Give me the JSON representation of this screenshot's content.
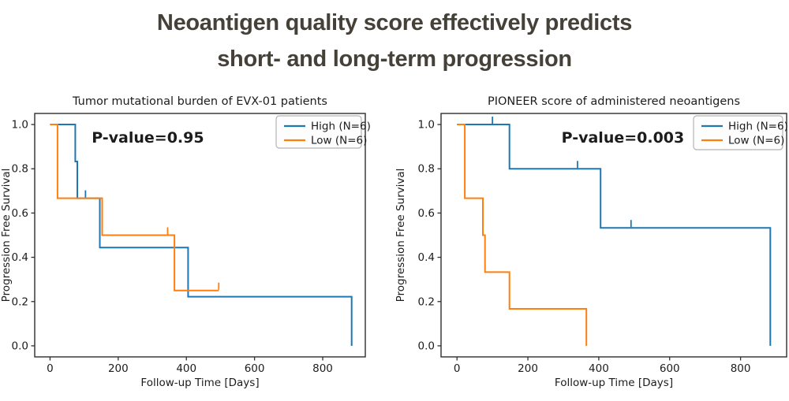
{
  "main_title": {
    "line1": "Neoantigen quality score effectively predicts",
    "line2": "short- and long-term progression"
  },
  "colors": {
    "high": "#1f77b4",
    "low": "#ff7f0e",
    "title_text": "#454139",
    "axis_text": "#1c1c1c",
    "spine": "#2e2e2e",
    "legend_border": "#b4b4b4",
    "legend_fill": "#fdfdfd"
  },
  "chart_data": [
    {
      "type": "line",
      "subtype": "kaplan-meier-step",
      "title": "Tumor mutational burden of EVX-01 patients",
      "xlabel": "Follow-up Time [Days]",
      "ylabel": "Progression Free Survival",
      "annotation": {
        "text": "P-value=0.95",
        "x": 287,
        "y": 0.94
      },
      "xlim": [
        -45,
        925
      ],
      "ylim": [
        -0.05,
        1.05
      ],
      "x_ticks": [
        0,
        200,
        400,
        600,
        800
      ],
      "y_ticks": [
        0.0,
        0.2,
        0.4,
        0.6,
        0.8,
        1.0
      ],
      "grid": false,
      "legend": {
        "position": "upper right",
        "entries": [
          {
            "label": "High (N=6)",
            "series": "high"
          },
          {
            "label": "Low (N=6)",
            "series": "low"
          }
        ]
      },
      "series": [
        {
          "name": "High (N=6)",
          "color": "high",
          "steps": [
            [
              0,
              1.0
            ],
            [
              74,
              1.0
            ],
            [
              74,
              0.833
            ],
            [
              80,
              0.833
            ],
            [
              80,
              0.667
            ],
            [
              146,
              0.667
            ],
            [
              146,
              0.444
            ],
            [
              405,
              0.444
            ],
            [
              405,
              0.222
            ],
            [
              885,
              0.222
            ],
            [
              885,
              0.0
            ]
          ],
          "censors": [
            [
              104,
              0.667
            ]
          ]
        },
        {
          "name": "Low (N=6)",
          "color": "low",
          "steps": [
            [
              0,
              1.0
            ],
            [
              22,
              1.0
            ],
            [
              22,
              0.667
            ],
            [
              153,
              0.667
            ],
            [
              153,
              0.5
            ],
            [
              365,
              0.5
            ],
            [
              365,
              0.25
            ],
            [
              495,
              0.25
            ]
          ],
          "censors": [
            [
              345,
              0.5
            ],
            [
              495,
              0.25
            ]
          ]
        }
      ]
    },
    {
      "type": "line",
      "subtype": "kaplan-meier-step",
      "title": "PIONEER score of administered neoantigens",
      "xlabel": "Follow-up Time [Days]",
      "ylabel": "Progression Free Survival",
      "annotation": {
        "text": "P-value=0.003",
        "x": 468,
        "y": 0.94
      },
      "xlim": [
        -45,
        930
      ],
      "ylim": [
        -0.05,
        1.05
      ],
      "x_ticks": [
        0,
        200,
        400,
        600,
        800
      ],
      "y_ticks": [
        0.0,
        0.2,
        0.4,
        0.6,
        0.8,
        1.0
      ],
      "grid": false,
      "legend": {
        "position": "upper right",
        "entries": [
          {
            "label": "High (N=6)",
            "series": "high"
          },
          {
            "label": "Low (N=6)",
            "series": "low"
          }
        ]
      },
      "series": [
        {
          "name": "High (N=6)",
          "color": "high",
          "steps": [
            [
              0,
              1.0
            ],
            [
              148,
              1.0
            ],
            [
              148,
              0.8
            ],
            [
              405,
              0.8
            ],
            [
              405,
              0.533
            ],
            [
              884,
              0.533
            ],
            [
              884,
              0.0
            ]
          ],
          "censors": [
            [
              100,
              1.0
            ],
            [
              340,
              0.8
            ],
            [
              491,
              0.533
            ]
          ]
        },
        {
          "name": "Low (N=6)",
          "color": "low",
          "steps": [
            [
              0,
              1.0
            ],
            [
              22,
              1.0
            ],
            [
              22,
              0.667
            ],
            [
              73,
              0.667
            ],
            [
              73,
              0.5
            ],
            [
              79,
              0.5
            ],
            [
              79,
              0.333
            ],
            [
              148,
              0.333
            ],
            [
              148,
              0.167
            ],
            [
              365,
              0.167
            ],
            [
              365,
              0.0
            ]
          ],
          "censors": []
        }
      ]
    }
  ]
}
